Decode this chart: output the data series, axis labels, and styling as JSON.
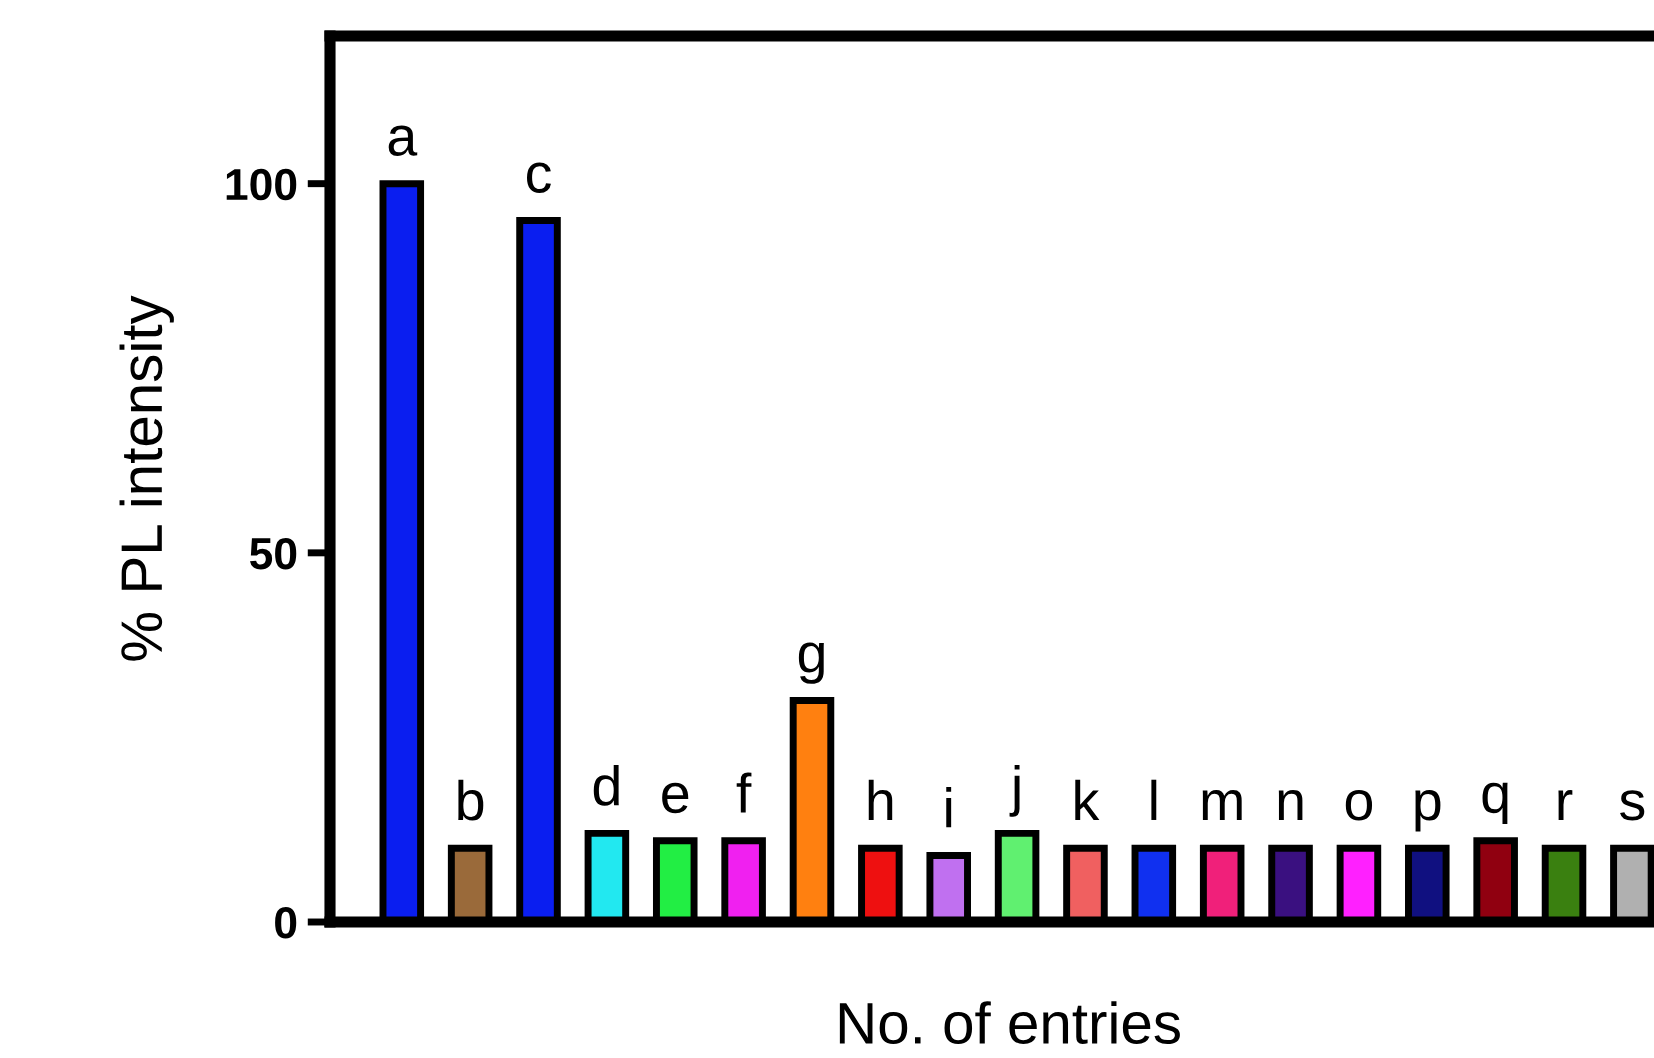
{
  "chart_data": {
    "type": "bar",
    "xlabel": "No. of entries",
    "ylabel": "% PL intensity",
    "categories": [
      null,
      null,
      null,
      null,
      null,
      null,
      null,
      null,
      null,
      null,
      null,
      null,
      null,
      null,
      null,
      null,
      null,
      null,
      null
    ],
    "values": [
      100,
      10,
      95,
      12,
      11,
      11,
      30,
      10,
      9,
      12,
      10,
      10,
      10,
      10,
      10,
      10,
      11,
      10,
      10
    ],
    "value_labels": [
      "a",
      "b",
      "c",
      "d",
      "e",
      "f",
      "g",
      "h",
      "i",
      "j",
      "k",
      "l",
      "m",
      "n",
      "o",
      "p",
      "q",
      "r",
      "s"
    ],
    "colors": [
      "#0a1ef0",
      "#9a6a3a",
      "#0a1ef0",
      "#22e8f0",
      "#22ee44",
      "#f020f0",
      "#ff8010",
      "#ee1010",
      "#c070f0",
      "#60f070",
      "#f06060",
      "#1030f0",
      "#f0207a",
      "#3a1080",
      "#ff20ff",
      "#101080",
      "#900010",
      "#3a8010",
      "#b0b0b0"
    ],
    "ylim": [
      0,
      120
    ],
    "yticks": [
      0,
      50,
      100
    ],
    "grid": false
  }
}
